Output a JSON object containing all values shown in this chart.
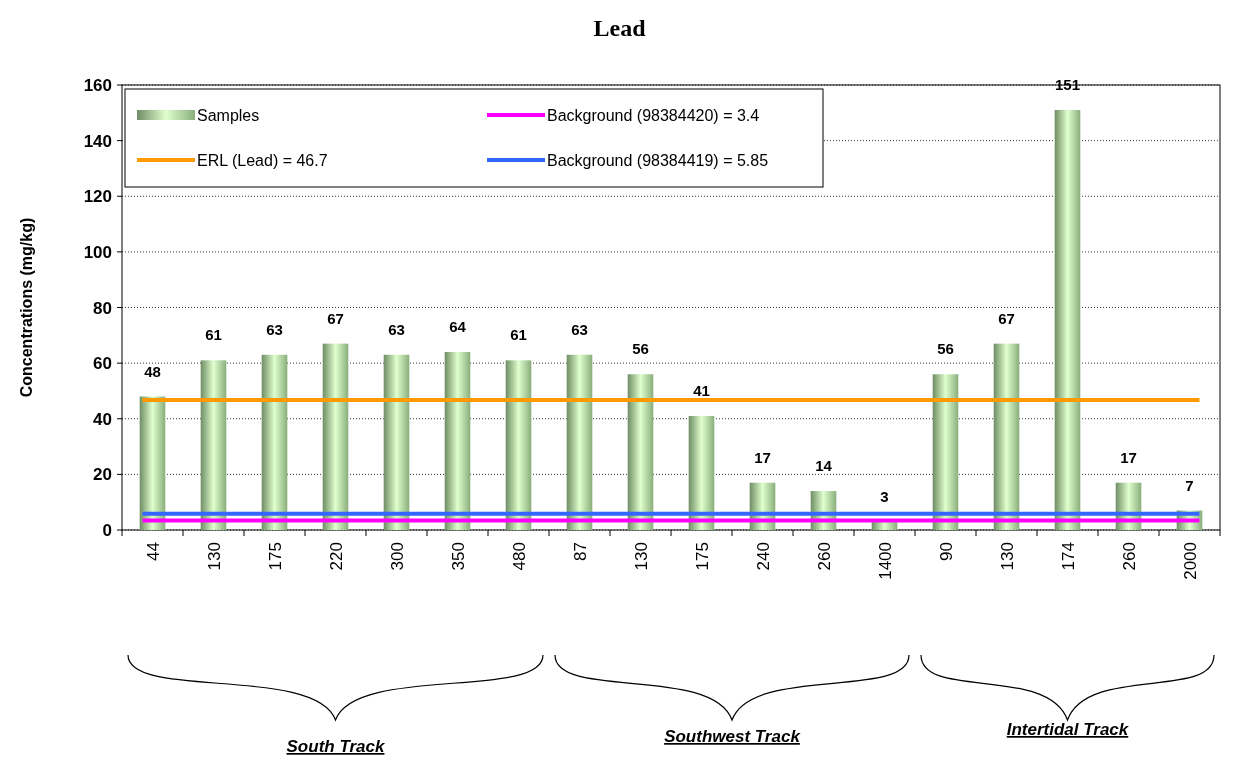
{
  "chart_data": {
    "type": "bar",
    "title": "Lead",
    "ylabel": "Concentrations (mg/kg)",
    "categories": [
      "44",
      "130",
      "175",
      "220",
      "300",
      "350",
      "480",
      "87",
      "130",
      "175",
      "240",
      "260",
      "1400",
      "90",
      "130",
      "174",
      "260",
      "2000"
    ],
    "series": [
      {
        "name": "Samples",
        "color": "#a8d89a",
        "values": [
          48,
          61,
          63,
          67,
          63,
          64,
          61,
          63,
          56,
          41,
          17,
          14,
          3,
          56,
          67,
          151,
          17,
          7
        ]
      }
    ],
    "ylim": [
      0,
      160
    ],
    "yticks": [
      0,
      20,
      40,
      60,
      80,
      100,
      120,
      140,
      160
    ],
    "grid": "y",
    "legend": "top",
    "data_labels": true,
    "ref_lines": [
      {
        "axis": "y",
        "value": 46.7,
        "label": "ERL (Lead) = 46.7",
        "color": "#ff9900"
      },
      {
        "axis": "y",
        "value": 3.4,
        "label": "Background (98384420) = 3.4",
        "color": "#ff00ff"
      },
      {
        "axis": "y",
        "value": 5.85,
        "label": "Background (98384419) = 5.85",
        "color": "#3366ff"
      }
    ],
    "annotations": [
      "South Track",
      "Southwest Track",
      "Intertidal Track"
    ]
  }
}
